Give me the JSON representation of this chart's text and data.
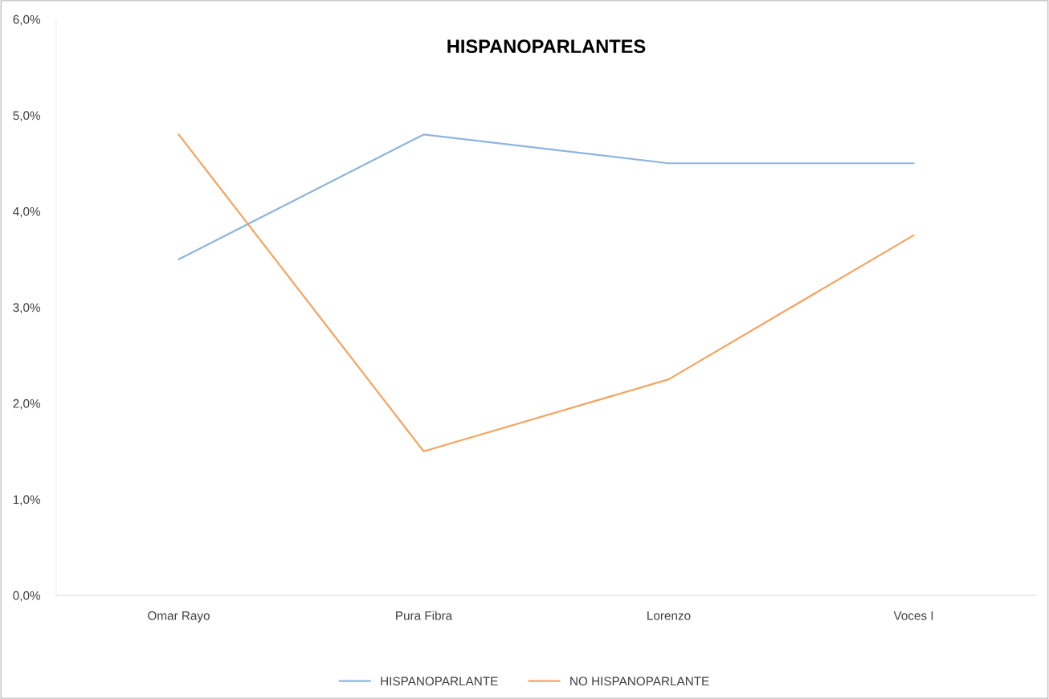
{
  "chart_data": {
    "type": "line",
    "title": "HISPANOPARLANTES",
    "categories": [
      "Omar Rayo",
      "Pura Fibra",
      "Lorenzo",
      "Voces I"
    ],
    "series": [
      {
        "name": "HISPANOPARLANTE",
        "color": "#8db4e2",
        "values": [
          3.5,
          4.8,
          4.5,
          4.5
        ]
      },
      {
        "name": "NO HISPANOPARLANTE",
        "color": "#f4a460",
        "values": [
          4.8,
          1.5,
          2.25,
          3.75
        ]
      }
    ],
    "ylim": [
      0,
      6
    ],
    "yticks": [
      {
        "value": 0,
        "label": "0,0%"
      },
      {
        "value": 1,
        "label": "1,0%"
      },
      {
        "value": 2,
        "label": "2,0%"
      },
      {
        "value": 3,
        "label": "3,0%"
      },
      {
        "value": 4,
        "label": "4,0%"
      },
      {
        "value": 5,
        "label": "5,0%"
      },
      {
        "value": 6,
        "label": "6,0%"
      }
    ],
    "grid": false,
    "legend": "bottom",
    "marker": "none",
    "line_style": "solid"
  }
}
